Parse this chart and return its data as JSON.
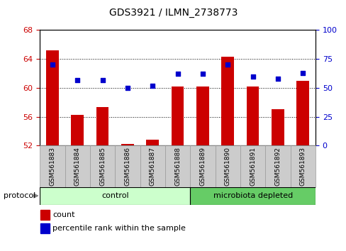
{
  "title": "GDS3921 / ILMN_2738773",
  "samples": [
    "GSM561883",
    "GSM561884",
    "GSM561885",
    "GSM561886",
    "GSM561887",
    "GSM561888",
    "GSM561889",
    "GSM561890",
    "GSM561891",
    "GSM561892",
    "GSM561893"
  ],
  "red_values": [
    65.2,
    56.3,
    57.3,
    52.2,
    52.8,
    60.2,
    60.2,
    64.3,
    60.2,
    57.0,
    61.0
  ],
  "blue_pct": [
    70,
    57,
    57,
    50,
    52,
    62,
    62,
    70,
    60,
    58,
    63
  ],
  "ylim_left": [
    52,
    68
  ],
  "ylim_right": [
    0,
    100
  ],
  "yticks_left": [
    52,
    56,
    60,
    64,
    68
  ],
  "yticks_right": [
    0,
    25,
    50,
    75,
    100
  ],
  "control_samples": 6,
  "microbiota_samples": 5,
  "bar_color": "#cc0000",
  "dot_color": "#0000cc",
  "control_color": "#ccffcc",
  "microbiota_color": "#66cc66",
  "control_label": "control",
  "microbiota_label": "microbiota depleted",
  "protocol_label": "protocol",
  "legend_red": "count",
  "legend_blue": "percentile rank within the sample",
  "tick_label_color_left": "#cc0000",
  "tick_label_color_right": "#0000cc",
  "plot_bg": "#ffffff",
  "tickbox_color": "#cccccc",
  "tickbox_edge": "#999999"
}
